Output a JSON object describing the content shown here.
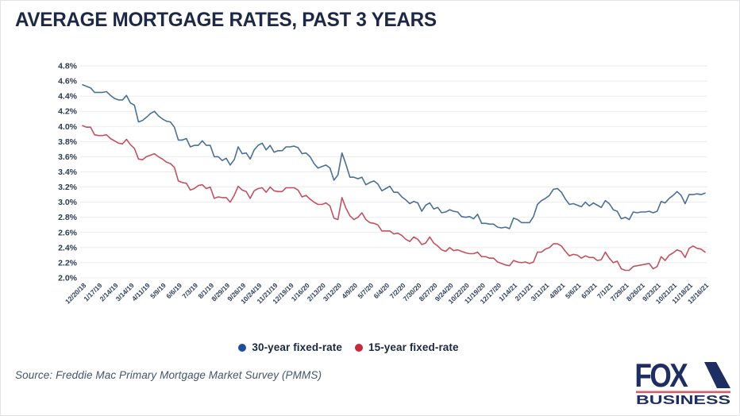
{
  "title": "AVERAGE MORTGAGE RATES, PAST 3 YEARS",
  "source": "Source: Freddie Mac Primary Mortgage Market Survey (PMMS)",
  "logo": {
    "fox": "FOX",
    "business": "BUSINESS"
  },
  "colors": {
    "title_navy": "#1c2844",
    "line_30yr": "#4a7096",
    "line_15yr": "#c25260",
    "legend_dot_30yr": "#1d4f9e",
    "legend_dot_15yr": "#c62a39",
    "gridline": "#ebebef",
    "logo_navy": "#1e2e63",
    "logo_red": "#dd5a66"
  },
  "chart_data": {
    "type": "line",
    "title": "AVERAGE MORTGAGE RATES, PAST 3 YEARS",
    "xlabel": "",
    "ylabel": "",
    "ylim": [
      2.0,
      4.8
    ],
    "grid": "horizontal",
    "legend_position": "bottom-center",
    "y_ticks": [
      "4.8%",
      "4.6%",
      "4.4%",
      "4.2%",
      "4.0%",
      "3.8%",
      "3.6%",
      "3.4%",
      "3.2%",
      "3.0%",
      "2.8%",
      "2.6%",
      "2.4%",
      "2.2%",
      "2.0%"
    ],
    "x_label_every": 4,
    "x_labels": [
      "12/20/18",
      "1/17/19",
      "2/14/19",
      "3/14/19",
      "4/11/19",
      "5/9/19",
      "6/6/19",
      "7/3/19",
      "8/1/19",
      "8/29/19",
      "9/26/19",
      "10/24/19",
      "11/21/19",
      "12/19/19",
      "1/16/20",
      "2/13/20",
      "3/12/20",
      "4/9/20",
      "5/7/20",
      "6/4/20",
      "7/2/20",
      "7/30/20",
      "8/27/20",
      "9/24/20",
      "10/22/20",
      "11/19/20",
      "12/17/20",
      "1/14/21",
      "2/11/21",
      "3/11/21",
      "4/8/21",
      "5/6/21",
      "6/3/21",
      "7/1/21",
      "7/29/21",
      "8/26/21",
      "9/23/21",
      "10/21/21",
      "11/18/21",
      "12/16/21"
    ],
    "series": [
      {
        "name": "30-year fixed-rate",
        "color": "#4a7096",
        "dot_color": "#1d4f9e",
        "values": [
          4.55,
          4.53,
          4.51,
          4.45,
          4.45,
          4.45,
          4.46,
          4.41,
          4.37,
          4.35,
          4.35,
          4.41,
          4.31,
          4.28,
          4.06,
          4.08,
          4.12,
          4.17,
          4.2,
          4.14,
          4.1,
          4.07,
          4.06,
          3.99,
          3.82,
          3.82,
          3.84,
          3.73,
          3.75,
          3.75,
          3.81,
          3.75,
          3.75,
          3.6,
          3.6,
          3.55,
          3.58,
          3.49,
          3.56,
          3.73,
          3.64,
          3.65,
          3.57,
          3.69,
          3.75,
          3.78,
          3.69,
          3.75,
          3.66,
          3.68,
          3.68,
          3.73,
          3.73,
          3.74,
          3.72,
          3.64,
          3.65,
          3.6,
          3.51,
          3.45,
          3.47,
          3.49,
          3.45,
          3.29,
          3.36,
          3.65,
          3.5,
          3.33,
          3.33,
          3.31,
          3.33,
          3.23,
          3.26,
          3.28,
          3.24,
          3.15,
          3.18,
          3.21,
          3.13,
          3.13,
          3.07,
          3.03,
          2.98,
          3.01,
          2.99,
          2.88,
          2.96,
          2.99,
          2.91,
          2.93,
          2.86,
          2.87,
          2.9,
          2.88,
          2.87,
          2.81,
          2.8,
          2.81,
          2.78,
          2.84,
          2.72,
          2.72,
          2.71,
          2.71,
          2.67,
          2.66,
          2.67,
          2.65,
          2.79,
          2.77,
          2.73,
          2.73,
          2.73,
          2.81,
          2.97,
          3.02,
          3.05,
          3.09,
          3.17,
          3.18,
          3.13,
          3.04,
          2.97,
          2.98,
          2.96,
          2.94,
          3.0,
          2.95,
          2.99,
          2.96,
          2.93,
          3.02,
          2.98,
          2.9,
          2.88,
          2.78,
          2.8,
          2.77,
          2.87,
          2.86,
          2.87,
          2.87,
          2.88,
          2.86,
          2.88,
          3.01,
          2.99,
          3.05,
          3.09,
          3.14,
          3.09,
          2.98,
          3.1,
          3.1,
          3.11,
          3.1,
          3.12
        ]
      },
      {
        "name": "15-year fixed-rate",
        "color": "#c25260",
        "dot_color": "#c62a39",
        "values": [
          4.01,
          3.99,
          3.99,
          3.89,
          3.88,
          3.88,
          3.89,
          3.84,
          3.81,
          3.78,
          3.77,
          3.83,
          3.76,
          3.71,
          3.57,
          3.56,
          3.6,
          3.62,
          3.64,
          3.6,
          3.57,
          3.53,
          3.51,
          3.46,
          3.28,
          3.26,
          3.25,
          3.16,
          3.18,
          3.22,
          3.23,
          3.18,
          3.2,
          3.05,
          3.07,
          3.06,
          3.06,
          3.0,
          3.09,
          3.21,
          3.16,
          3.14,
          3.05,
          3.15,
          3.18,
          3.19,
          3.13,
          3.2,
          3.15,
          3.14,
          3.14,
          3.19,
          3.19,
          3.19,
          3.16,
          3.07,
          3.09,
          3.04,
          3.0,
          2.97,
          2.97,
          2.99,
          2.95,
          2.79,
          2.77,
          3.06,
          2.92,
          2.82,
          2.77,
          2.8,
          2.86,
          2.77,
          2.73,
          2.72,
          2.7,
          2.62,
          2.62,
          2.62,
          2.58,
          2.59,
          2.56,
          2.51,
          2.48,
          2.54,
          2.51,
          2.44,
          2.46,
          2.54,
          2.46,
          2.42,
          2.37,
          2.35,
          2.4,
          2.36,
          2.37,
          2.35,
          2.33,
          2.32,
          2.32,
          2.34,
          2.28,
          2.28,
          2.26,
          2.26,
          2.21,
          2.19,
          2.17,
          2.16,
          2.23,
          2.21,
          2.2,
          2.21,
          2.19,
          2.21,
          2.34,
          2.34,
          2.38,
          2.4,
          2.45,
          2.45,
          2.42,
          2.35,
          2.29,
          2.31,
          2.3,
          2.26,
          2.29,
          2.27,
          2.27,
          2.23,
          2.24,
          2.34,
          2.26,
          2.2,
          2.22,
          2.12,
          2.1,
          2.1,
          2.15,
          2.16,
          2.17,
          2.18,
          2.19,
          2.12,
          2.15,
          2.28,
          2.23,
          2.3,
          2.33,
          2.37,
          2.35,
          2.27,
          2.39,
          2.42,
          2.39,
          2.38,
          2.34
        ]
      }
    ]
  }
}
